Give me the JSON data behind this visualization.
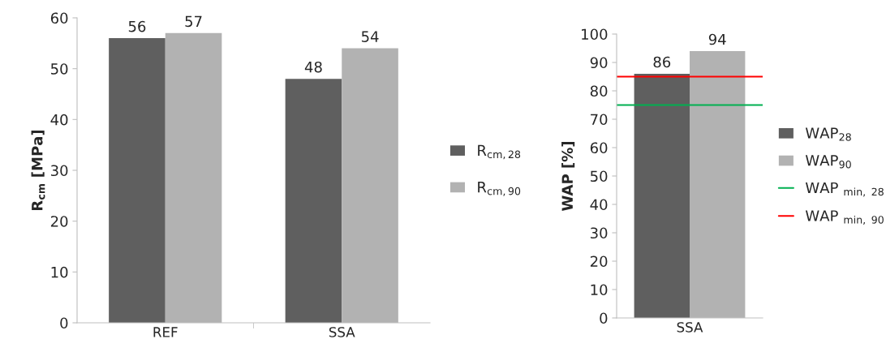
{
  "chart_data": [
    {
      "type": "bar",
      "categories": [
        "REF",
        "SSA"
      ],
      "ylabel": "R$_{cm}$ [MPa]",
      "ylim": [
        0,
        60
      ],
      "yticks": [
        0,
        10,
        20,
        30,
        40,
        50,
        60
      ],
      "data_labels": true,
      "legend": "right",
      "grid": false,
      "series": [
        {
          "name": "R$_{cm,28}$",
          "color": "#5f5f5f",
          "values": [
            56,
            48
          ]
        },
        {
          "name": "R$_{cm,90}$",
          "color": "#b2b2b2",
          "values": [
            57,
            54
          ]
        }
      ]
    },
    {
      "type": "bar",
      "categories": [
        "SSA"
      ],
      "ylabel": "WAP [%]",
      "ylim": [
        0,
        100
      ],
      "yticks": [
        0,
        10,
        20,
        30,
        40,
        50,
        60,
        70,
        80,
        90,
        100
      ],
      "data_labels": true,
      "legend": "right",
      "grid": false,
      "series": [
        {
          "name": "WAP$_{28}$",
          "color": "#5f5f5f",
          "values": [
            86
          ]
        },
        {
          "name": "WAP$_{90}$",
          "color": "#b2b2b2",
          "values": [
            94
          ]
        }
      ],
      "ref_lines": [
        {
          "axis": "y",
          "value": 75,
          "label": "WAP $_{min, 28}$",
          "color": "#00b050"
        },
        {
          "axis": "y",
          "value": 85,
          "label": "WAP $_{min, 90}$",
          "color": "#ff0000"
        }
      ]
    }
  ]
}
